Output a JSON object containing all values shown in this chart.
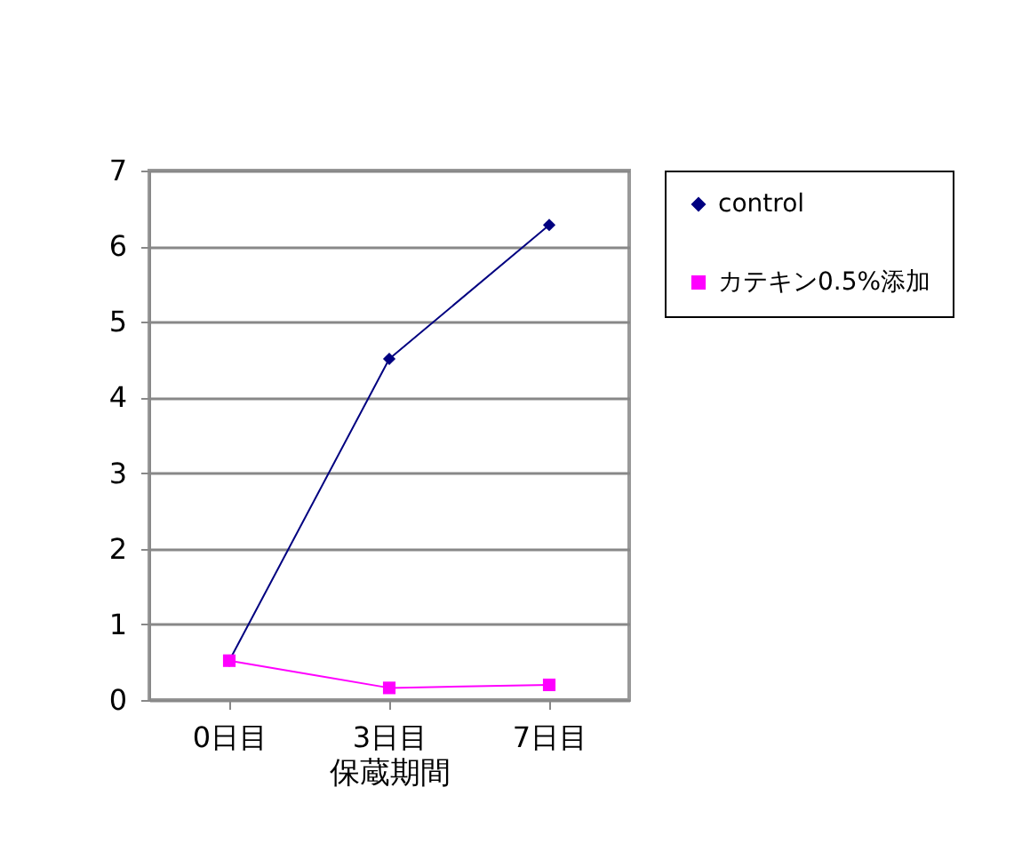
{
  "chart_data": {
    "type": "line",
    "xlabel": "保蔵期間",
    "categories": [
      "0日目",
      "3日目",
      "7日目"
    ],
    "series": [
      {
        "name": "control",
        "color": "#000080",
        "marker": "diamond",
        "values": [
          0.52,
          4.51,
          6.28
        ]
      },
      {
        "name": "カテキン0.5%添加",
        "color": "#ff00ff",
        "marker": "square",
        "values": [
          0.52,
          0.16,
          0.2
        ]
      }
    ],
    "ylim": [
      0,
      7
    ],
    "yticks": [
      0,
      1,
      2,
      3,
      4,
      5,
      6,
      7
    ],
    "grid": "y",
    "legend": "right"
  }
}
